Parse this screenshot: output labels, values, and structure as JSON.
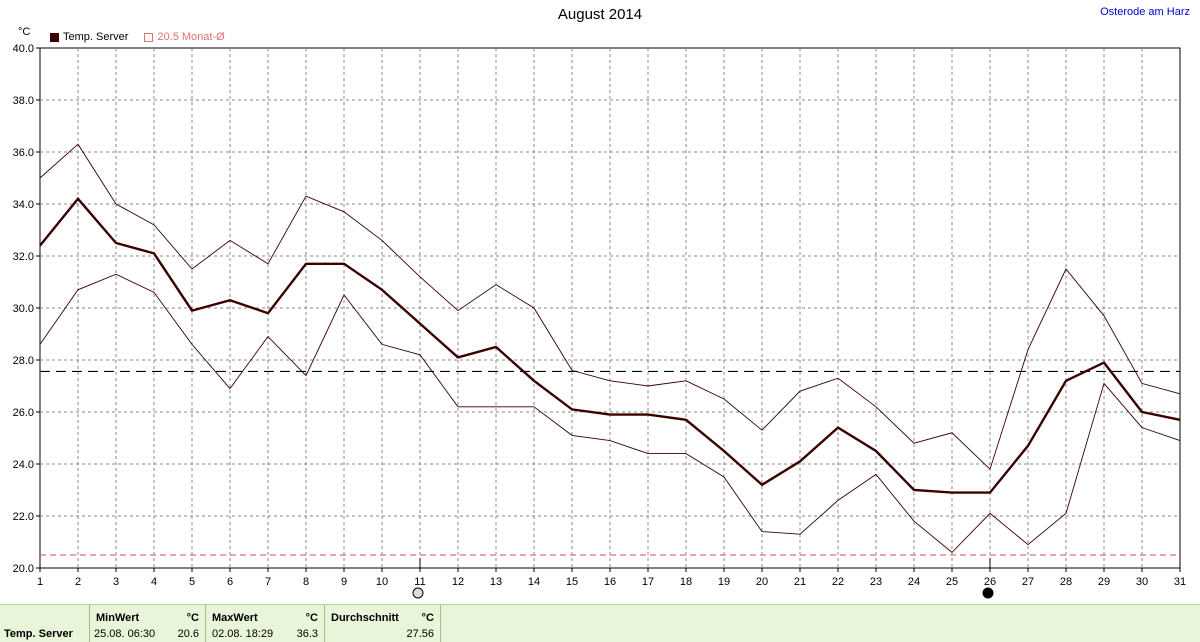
{
  "header": {
    "title": "August 2014",
    "location": "Osterode am Harz",
    "unit": "°C"
  },
  "legend": {
    "series_label": "Temp. Server",
    "series_color": "#3a0000",
    "avg_label": "20.5 Monat-Ø",
    "avg_color": "#e07070"
  },
  "chart_data": {
    "type": "line",
    "x": [
      1,
      2,
      3,
      4,
      5,
      6,
      7,
      8,
      9,
      10,
      11,
      12,
      13,
      14,
      15,
      16,
      17,
      18,
      19,
      20,
      21,
      22,
      23,
      24,
      25,
      26,
      27,
      28,
      29,
      30,
      31
    ],
    "xlim": [
      1,
      31
    ],
    "ylim": [
      20,
      40
    ],
    "yticks": [
      "20.0",
      "22.0",
      "24.0",
      "26.0",
      "28.0",
      "30.0",
      "32.0",
      "34.0",
      "36.0",
      "38.0",
      "40.0"
    ],
    "grid": true,
    "series": [
      {
        "name": "Temp. Server",
        "values": [
          32.4,
          34.2,
          32.5,
          32.1,
          29.9,
          30.3,
          29.8,
          31.7,
          31.7,
          30.7,
          29.4,
          28.1,
          28.5,
          27.2,
          26.1,
          25.9,
          25.9,
          25.7,
          24.5,
          23.2,
          24.1,
          25.4,
          24.5,
          23.0,
          22.9,
          22.9,
          24.7,
          27.2,
          27.9,
          26.0,
          25.7
        ]
      },
      {
        "values": [
          35.0,
          36.3,
          34.0,
          33.2,
          31.5,
          32.6,
          31.7,
          34.3,
          33.7,
          32.6,
          31.2,
          29.9,
          30.9,
          30.0,
          27.6,
          27.2,
          27.0,
          27.2,
          26.5,
          25.3,
          26.8,
          27.3,
          26.2,
          24.8,
          25.2,
          23.8,
          28.4,
          31.5,
          29.7,
          27.1,
          26.7
        ]
      },
      {
        "values": [
          28.6,
          30.7,
          31.3,
          30.6,
          28.6,
          26.9,
          28.9,
          27.4,
          30.5,
          28.6,
          28.2,
          26.2,
          26.2,
          26.2,
          25.1,
          24.9,
          24.4,
          24.4,
          23.5,
          21.4,
          21.3,
          22.6,
          23.6,
          21.8,
          20.6,
          22.1,
          20.9,
          22.1,
          27.1,
          25.4,
          24.9
        ]
      }
    ],
    "reference_lines": [
      {
        "value": 27.56,
        "color": "#000000"
      },
      {
        "value": 20.5,
        "color": "#e07070"
      }
    ],
    "moon_phases": [
      {
        "day": 11,
        "phase": "full"
      },
      {
        "day": 26,
        "phase": "new"
      }
    ]
  },
  "stats": {
    "row_label": "Temp. Server",
    "min_label": "MinWert",
    "min_unit": "°C",
    "min_time": "25.08.  06:30",
    "min_value": "20.6",
    "max_label": "MaxWert",
    "max_unit": "°C",
    "max_time": "02.08.  18:29",
    "max_value": "36.3",
    "avg_label": "Durchschnitt",
    "avg_unit": "°C",
    "avg_value": "27.56"
  }
}
